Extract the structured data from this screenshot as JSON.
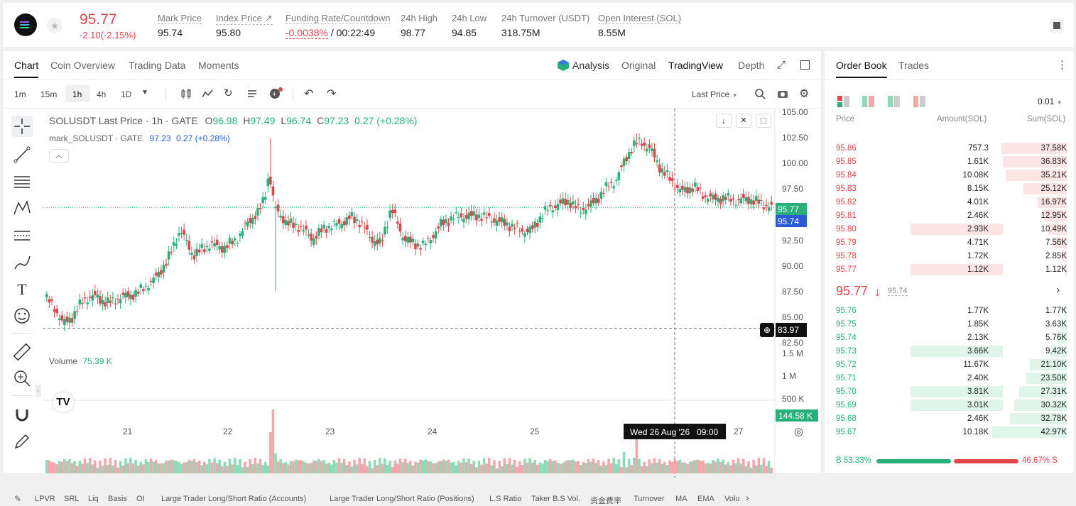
{
  "ticker": {
    "last_price": "95.77",
    "change": "-2.10(-2.15%)",
    "mark_label": "Mark Price",
    "mark_value": "95.74",
    "index_label": "Index Price",
    "index_value": "95.80",
    "funding_label": "Funding Rate/Countdown",
    "funding_rate": "-0.0038%",
    "countdown": " / 00:22:49",
    "high_label": "24h High",
    "high_value": "98.77",
    "low_label": "24h Low",
    "low_value": "94.85",
    "turnover_label": "24h Turnover (USDT)",
    "turnover_value": "318.75M",
    "oi_label": "Open Interest (SOL)",
    "oi_value": "8.55M"
  },
  "chart_tabs": [
    "Chart",
    "Coin Overview",
    "Trading Data",
    "Moments"
  ],
  "view_tabs": {
    "analysis": "Analysis",
    "original": "Original",
    "tradingview": "TradingView",
    "depth": "Depth"
  },
  "intervals": [
    "1m",
    "15m",
    "1h",
    "4h",
    "1D"
  ],
  "price_type": "Last Price",
  "legend": {
    "symbol": "SOLUSDT Last Price · 1h · GATE",
    "o_label": "O",
    "o": "96.98",
    "h_label": "H",
    "h": "97.49",
    "l_label": "L",
    "l": "96.74",
    "c_label": "C",
    "c": "97.23",
    "chg": "0.27 (+0.28%)",
    "mark_name": "mark_SOLUSDT · GATE",
    "mark_val": "97.23",
    "mark_chg": "0.27 (+0.28%)"
  },
  "y_axis": [
    "105.00",
    "102.50",
    "100.00",
    "97.50",
    "95.00",
    "92.50",
    "90.00",
    "87.50",
    "85.00",
    "82.50"
  ],
  "price_tags": {
    "last": "95.77",
    "mark": "95.74",
    "cursor": "83.97",
    "volume": "144.58 K"
  },
  "volume": {
    "label": "Volume",
    "value": "75.39 K",
    "axis": [
      "1.5 M",
      "1 M",
      "500 K"
    ]
  },
  "x_axis": [
    "21",
    "22",
    "23",
    "24",
    "25",
    "27"
  ],
  "crosshair_time": "Wed 26 Aug '26   09:00",
  "bottom_indicators": [
    "LPVR",
    "SRL",
    "Liq",
    "Basis",
    "OI",
    "Large Trader Long/Short Ratio (Accounts)",
    "Large Trader Long/Short Ratio (Positions)",
    "L.S Ratio",
    "Taker B.S Vol.",
    "资金费率",
    "Turnover",
    "MA",
    "EMA",
    "Volu"
  ],
  "orderbook": {
    "tabs": [
      "Order Book",
      "Trades"
    ],
    "precision": "0.01",
    "headers": [
      "Price",
      "Amount(SOL)",
      "Sum(SOL)"
    ],
    "asks": [
      {
        "price": "95.86",
        "amount": "757.3",
        "sum": "37.58K"
      },
      {
        "price": "95.85",
        "amount": "1.61K",
        "sum": "36.83K"
      },
      {
        "price": "95.84",
        "amount": "10.08K",
        "sum": "35.21K"
      },
      {
        "price": "95.83",
        "amount": "8.15K",
        "sum": "25.12K"
      },
      {
        "price": "95.82",
        "amount": "4.01K",
        "sum": "16.97K"
      },
      {
        "price": "95.81",
        "amount": "2.46K",
        "sum": "12.95K"
      },
      {
        "price": "95.80",
        "amount": "2.93K",
        "sum": "10.49K"
      },
      {
        "price": "95.79",
        "amount": "4.71K",
        "sum": "7.56K"
      },
      {
        "price": "95.78",
        "amount": "1.72K",
        "sum": "2.85K"
      },
      {
        "price": "95.77",
        "amount": "1.12K",
        "sum": "1.12K"
      }
    ],
    "mid_price": "95.77",
    "mid_mark": "95.74",
    "bids": [
      {
        "price": "95.76",
        "amount": "1.77K",
        "sum": "1.77K"
      },
      {
        "price": "95.75",
        "amount": "1.85K",
        "sum": "3.63K"
      },
      {
        "price": "95.74",
        "amount": "2.13K",
        "sum": "5.76K"
      },
      {
        "price": "95.73",
        "amount": "3.66K",
        "sum": "9.42K"
      },
      {
        "price": "95.72",
        "amount": "11.67K",
        "sum": "21.10K"
      },
      {
        "price": "95.71",
        "amount": "2.40K",
        "sum": "23.50K"
      },
      {
        "price": "95.70",
        "amount": "3.81K",
        "sum": "27.31K"
      },
      {
        "price": "95.69",
        "amount": "3.01K",
        "sum": "30.32K"
      },
      {
        "price": "95.68",
        "amount": "2.46K",
        "sum": "32.78K"
      },
      {
        "price": "95.67",
        "amount": "10.18K",
        "sum": "42.97K"
      }
    ],
    "buy_ratio": "B 53.33%",
    "sell_ratio": "46.67% S",
    "buy_pct": 53.33
  },
  "colors": {
    "up": "#27b07a",
    "down": "#e0454d",
    "up_bar": "#8fd9b8",
    "down_bar": "#f3a6ab",
    "accent": "#111"
  },
  "icons": [
    "sol-logo-icon",
    "star-icon",
    "book-icon",
    "crosshair-icon",
    "trend-line-icon",
    "fib-icon",
    "pattern-icon",
    "measure-icon",
    "brush-icon",
    "text-icon",
    "emoji-icon",
    "ruler-icon",
    "zoom-icon",
    "magnet-icon",
    "pencil-icon"
  ]
}
